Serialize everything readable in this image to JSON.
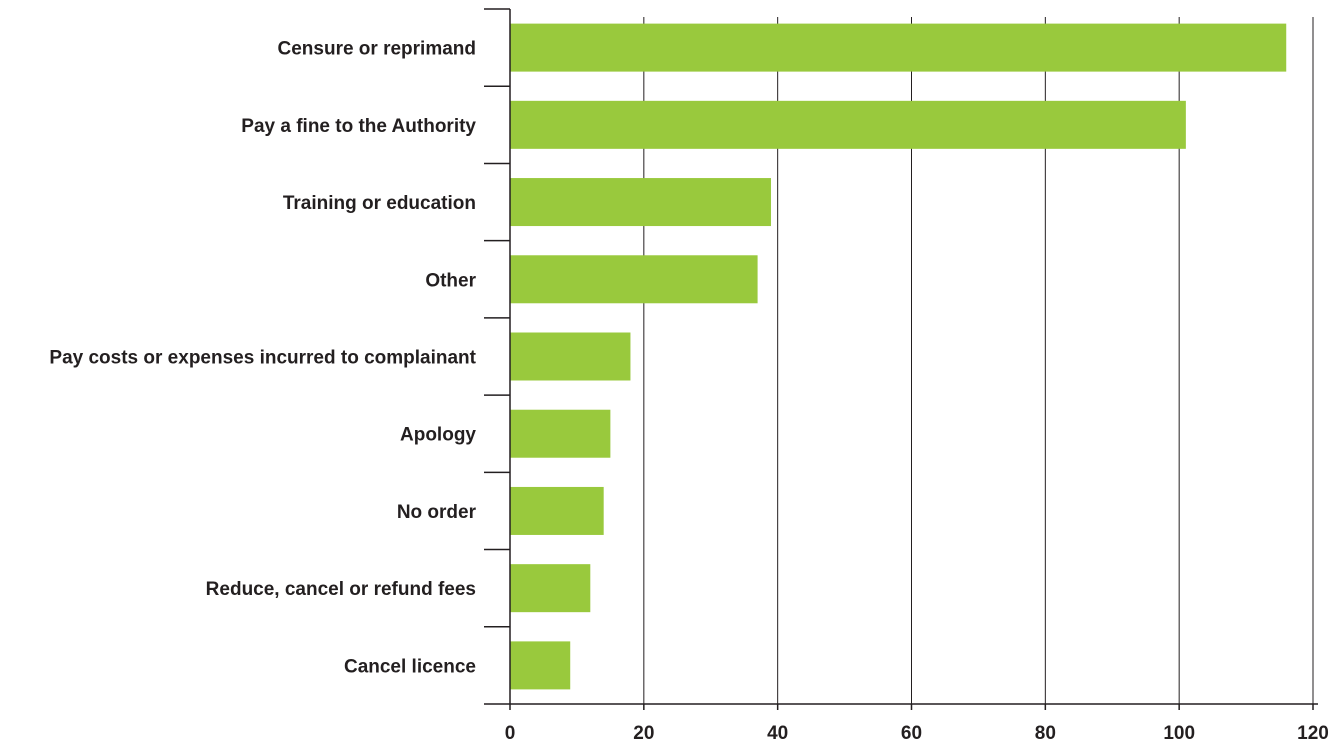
{
  "chart_data": {
    "type": "bar",
    "orientation": "horizontal",
    "title": "",
    "xlabel": "",
    "ylabel": "",
    "categories": [
      "Censure or reprimand",
      "Pay a fine to the Authority",
      "Training or education",
      "Other",
      "Pay costs or expenses incurred to complainant",
      "Apology",
      "No order",
      "Reduce, cancel or refund fees",
      "Cancel licence"
    ],
    "values": [
      116,
      101,
      39,
      37,
      18,
      15,
      14,
      12,
      9
    ],
    "xlim": [
      0,
      120
    ],
    "x_ticks": [
      "0",
      "20",
      "40",
      "60",
      "80",
      "100",
      "120"
    ],
    "grid": "vertical",
    "legend": "none",
    "bar_color": "#99c93d",
    "grid_color": "#231f20",
    "axis_color": "#231f20"
  }
}
